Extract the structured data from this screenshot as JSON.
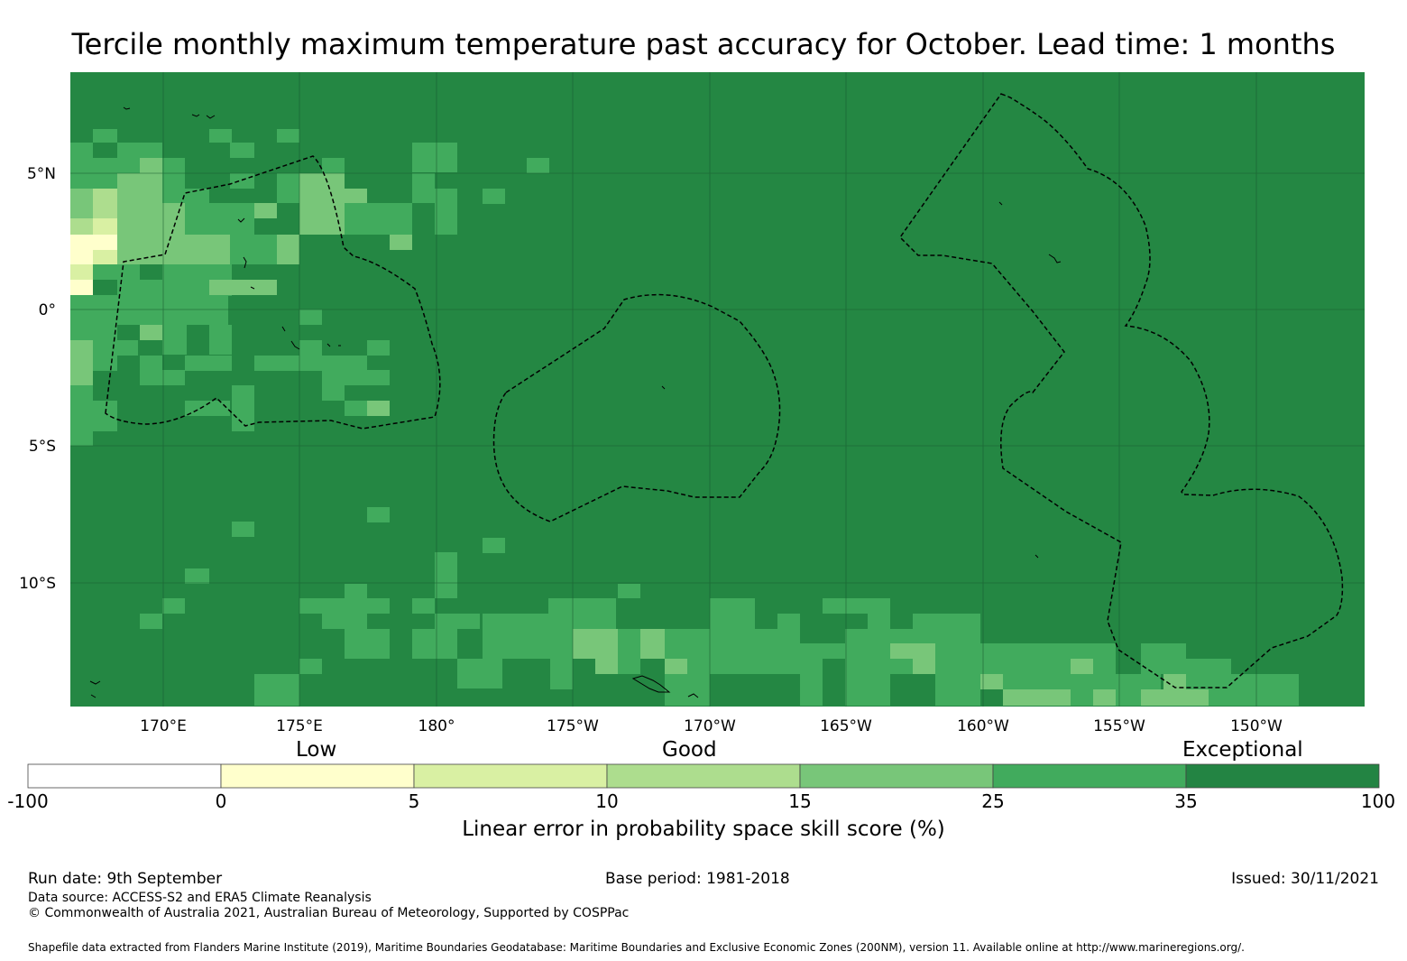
{
  "title": "Tercile monthly maximum temperature past accuracy for October. Lead time: 1 months",
  "map": {
    "lat_labels": [
      "5°N",
      "0°",
      "5°S",
      "10°S"
    ],
    "lon_labels": [
      "170°E",
      "175°E",
      "180°",
      "175°W",
      "170°W",
      "165°W",
      "160°W",
      "155°W",
      "150°W"
    ],
    "background_color": "#248743"
  },
  "legend": {
    "categories": [
      "Low",
      "Good",
      "Exceptional"
    ],
    "ticks": [
      "-100",
      "0",
      "5",
      "10",
      "15",
      "25",
      "35",
      "100"
    ],
    "colors": [
      "#ffffff",
      "#ffffcc",
      "#d9f0a3",
      "#addd8e",
      "#78c679",
      "#41ab5d",
      "#238443"
    ],
    "label": "Linear error in probability space skill score (%)"
  },
  "footer": {
    "run_date": "Run date: 9th September",
    "base_period": "Base period: 1981-2018",
    "issued": "Issued: 30/11/2021",
    "data_source": "Data source: ACCESS-S2 and ERA5 Climate Reanalysis",
    "copyright": "© Commonwealth of Australia 2021, Australian Bureau of Meteorology, Supported by COSPPac",
    "shapefile": "Shapefile data extracted from Flanders Marine Institute (2019), Maritime Boundaries Geodatabase: Maritime Boundaries and Exclusive Economic Zones (200NM), version 11. Available online at http://www.marineregions.org/."
  }
}
